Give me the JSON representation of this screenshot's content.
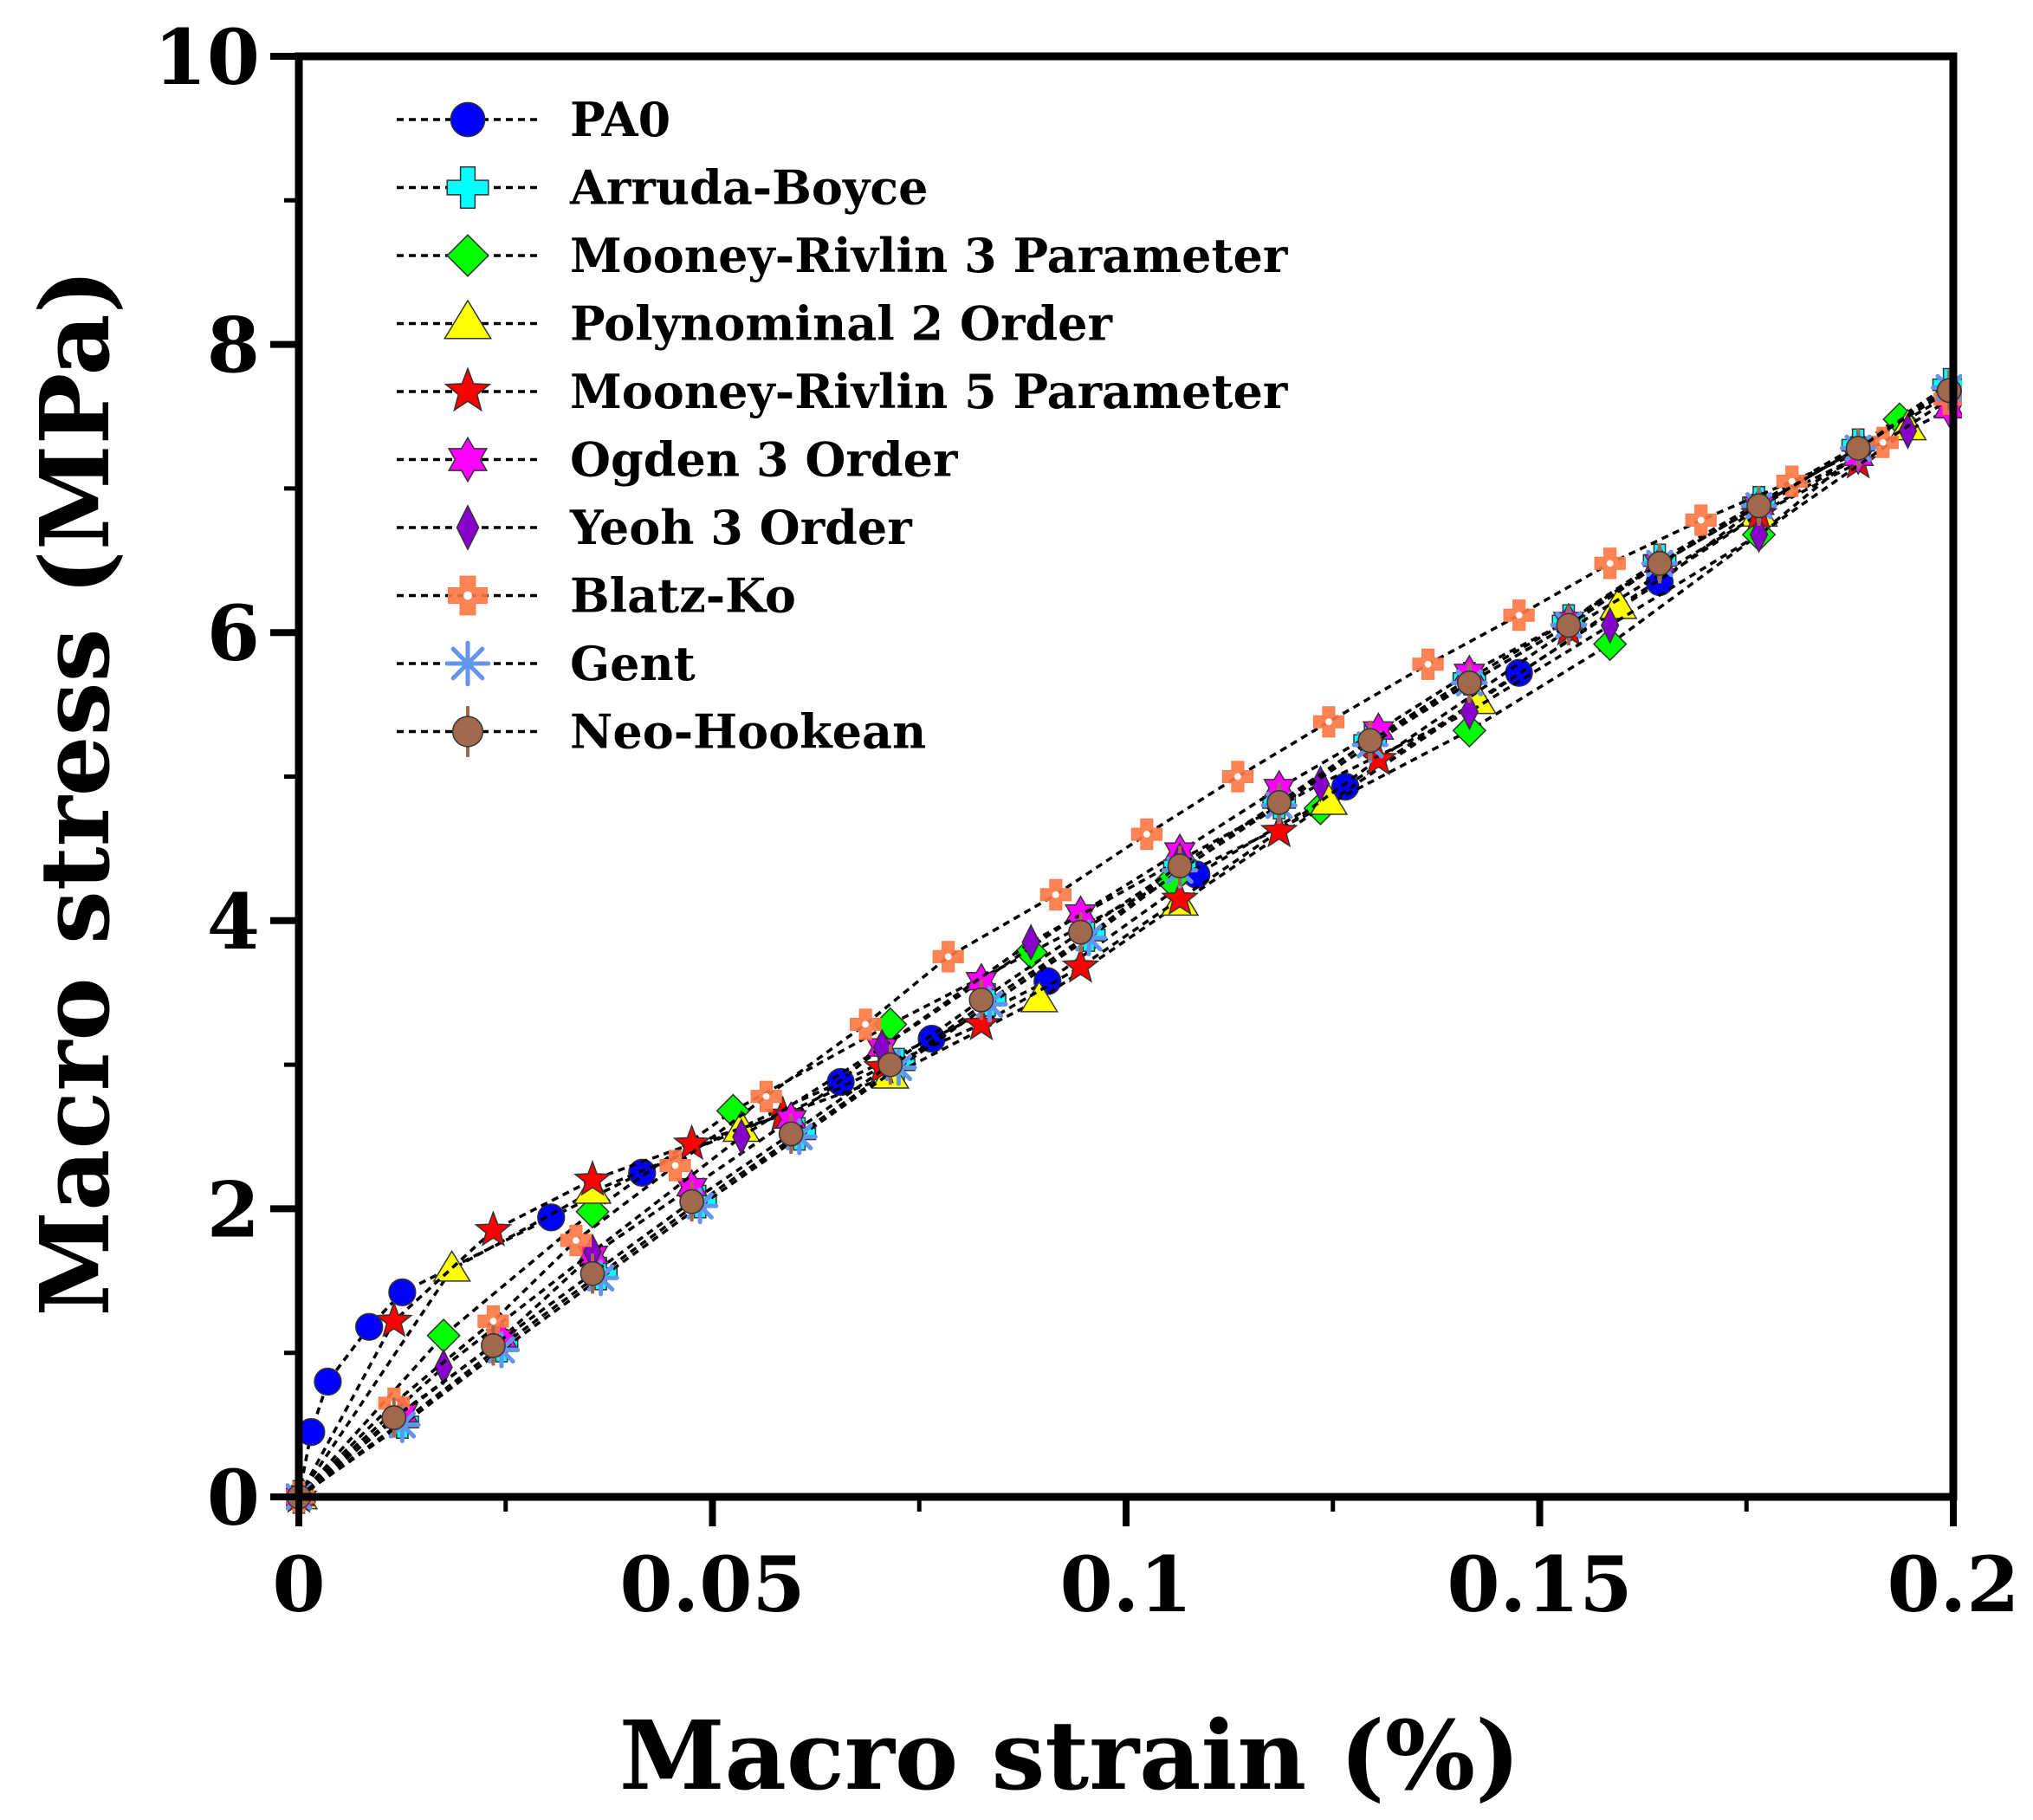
{
  "chart_data": {
    "type": "line",
    "xlabel": "Macro strain (%)",
    "ylabel": "Macro stress (MPa)",
    "xlim": [
      0,
      0.2
    ],
    "ylim": [
      0,
      10
    ],
    "xticks": [
      "0",
      "0.05",
      "0.1",
      "0.15",
      "0.2"
    ],
    "yticks": [
      "0",
      "2",
      "4",
      "6",
      "8",
      "10"
    ],
    "legend_position": "top-left",
    "line_style": "dashed-black",
    "series": [
      {
        "name": "PA0",
        "marker": "circle",
        "color": "#0000FF",
        "x": [
          0,
          0.0015,
          0.0035,
          0.0085,
          0.0125,
          0.0305,
          0.0415,
          0.0655,
          0.0765,
          0.0905,
          0.1085,
          0.1265,
          0.1475,
          0.1645,
          0.1765,
          0.1885,
          0.1995
        ],
        "y": [
          0,
          0.45,
          0.8,
          1.18,
          1.42,
          1.94,
          2.25,
          2.88,
          3.18,
          3.58,
          4.32,
          4.93,
          5.72,
          6.35,
          6.88,
          7.28,
          7.65
        ]
      },
      {
        "name": "Arruda-Boyce",
        "marker": "plus",
        "color": "#00FFFF",
        "x": [
          0,
          0.0125,
          0.0245,
          0.0365,
          0.0485,
          0.0605,
          0.0725,
          0.0835,
          0.0955,
          0.1065,
          0.1185,
          0.1295,
          0.1415,
          0.1535,
          0.1645,
          0.1765,
          0.1885,
          0.1995
        ],
        "y": [
          0,
          0.52,
          1.05,
          1.55,
          2.05,
          2.52,
          3.0,
          3.45,
          3.9,
          4.38,
          4.82,
          5.25,
          5.68,
          6.08,
          6.5,
          6.9,
          7.3,
          7.72
        ]
      },
      {
        "name": "Mooney-Rivlin 3 Parameter",
        "marker": "diamond",
        "color": "#00FF00",
        "x": [
          0,
          0.0175,
          0.0355,
          0.0525,
          0.0715,
          0.0885,
          0.1055,
          0.1235,
          0.1415,
          0.1585,
          0.1765,
          0.1935
        ],
        "y": [
          0,
          1.12,
          1.98,
          2.68,
          3.28,
          3.78,
          4.28,
          4.78,
          5.32,
          5.92,
          6.68,
          7.48
        ]
      },
      {
        "name": "Polynominal 2 Order",
        "marker": "triangle",
        "color": "#FFFF00",
        "x": [
          0,
          0.0185,
          0.0355,
          0.0535,
          0.0715,
          0.0895,
          0.1065,
          0.1245,
          0.1425,
          0.1595,
          0.1765,
          0.1945
        ],
        "y": [
          0,
          1.58,
          2.12,
          2.55,
          2.92,
          3.45,
          4.12,
          4.82,
          5.52,
          6.18,
          6.82,
          7.42
        ]
      },
      {
        "name": "Mooney-Rivlin 5 Parameter",
        "marker": "star",
        "color": "#FF0000",
        "x": [
          0,
          0.0115,
          0.0235,
          0.0355,
          0.0475,
          0.0585,
          0.0705,
          0.0825,
          0.0945,
          0.1065,
          0.1185,
          0.1305,
          0.1535,
          0.1765,
          0.1885
        ],
        "y": [
          0,
          1.22,
          1.85,
          2.2,
          2.45,
          2.65,
          2.98,
          3.28,
          3.68,
          4.15,
          4.62,
          5.12,
          6.02,
          6.82,
          7.18
        ]
      },
      {
        "name": "Ogden 3 Order",
        "marker": "hexagram",
        "color": "#FF00FF",
        "x": [
          0,
          0.0125,
          0.0245,
          0.0355,
          0.0475,
          0.0595,
          0.0705,
          0.0825,
          0.0945,
          0.1065,
          0.1185,
          0.1305,
          0.1415,
          0.1535,
          0.1645,
          0.1765,
          0.1885,
          0.1995
        ],
        "y": [
          0,
          0.58,
          1.1,
          1.68,
          2.15,
          2.62,
          3.12,
          3.58,
          4.05,
          4.48,
          4.92,
          5.32,
          5.72,
          6.08,
          6.48,
          6.88,
          7.22,
          7.55
        ]
      },
      {
        "name": "Yeoh 3 Order",
        "marker": "thin-diamond",
        "color": "#8800CC",
        "x": [
          0,
          0.0175,
          0.0355,
          0.0535,
          0.0705,
          0.0885,
          0.1065,
          0.1235,
          0.1415,
          0.1585,
          0.1765,
          0.1945
        ],
        "y": [
          0,
          0.9,
          1.7,
          2.5,
          3.12,
          3.85,
          4.42,
          4.95,
          5.45,
          6.05,
          6.68,
          7.4
        ]
      },
      {
        "name": "Blatz-Ko",
        "marker": "cross",
        "color": "#FF7744",
        "x": [
          0,
          0.0115,
          0.0235,
          0.0335,
          0.0455,
          0.0565,
          0.0685,
          0.0785,
          0.0915,
          0.1025,
          0.1135,
          0.1245,
          0.1365,
          0.1475,
          0.1585,
          0.1695,
          0.1805,
          0.1915,
          0.1995
        ],
        "y": [
          0,
          0.65,
          1.22,
          1.78,
          2.3,
          2.78,
          3.28,
          3.75,
          4.18,
          4.6,
          5.0,
          5.38,
          5.78,
          6.12,
          6.48,
          6.78,
          7.05,
          7.32,
          7.62
        ]
      },
      {
        "name": "Gent",
        "marker": "asterisk",
        "color": "#6495ED",
        "x": [
          0,
          0.0125,
          0.0245,
          0.0365,
          0.0485,
          0.0605,
          0.0725,
          0.0835,
          0.0955,
          0.1065,
          0.1185,
          0.1295,
          0.1415,
          0.1535,
          0.1645,
          0.1765,
          0.1885,
          0.1995
        ],
        "y": [
          0,
          0.5,
          1.02,
          1.52,
          2.02,
          2.5,
          2.98,
          3.42,
          3.88,
          4.35,
          4.8,
          5.22,
          5.65,
          6.05,
          6.48,
          6.88,
          7.28,
          7.7
        ]
      },
      {
        "name": "Neo-Hookean",
        "marker": "circle-bar",
        "color": "#A0694B",
        "x": [
          0,
          0.0115,
          0.0235,
          0.0355,
          0.0475,
          0.0595,
          0.0715,
          0.0825,
          0.0945,
          0.1065,
          0.1185,
          0.1295,
          0.1415,
          0.1535,
          0.1645,
          0.1765,
          0.1885,
          0.1995
        ],
        "y": [
          0,
          0.55,
          1.05,
          1.55,
          2.05,
          2.52,
          3.0,
          3.45,
          3.92,
          4.38,
          4.82,
          5.25,
          5.65,
          6.05,
          6.48,
          6.88,
          7.28,
          7.68
        ]
      }
    ]
  }
}
